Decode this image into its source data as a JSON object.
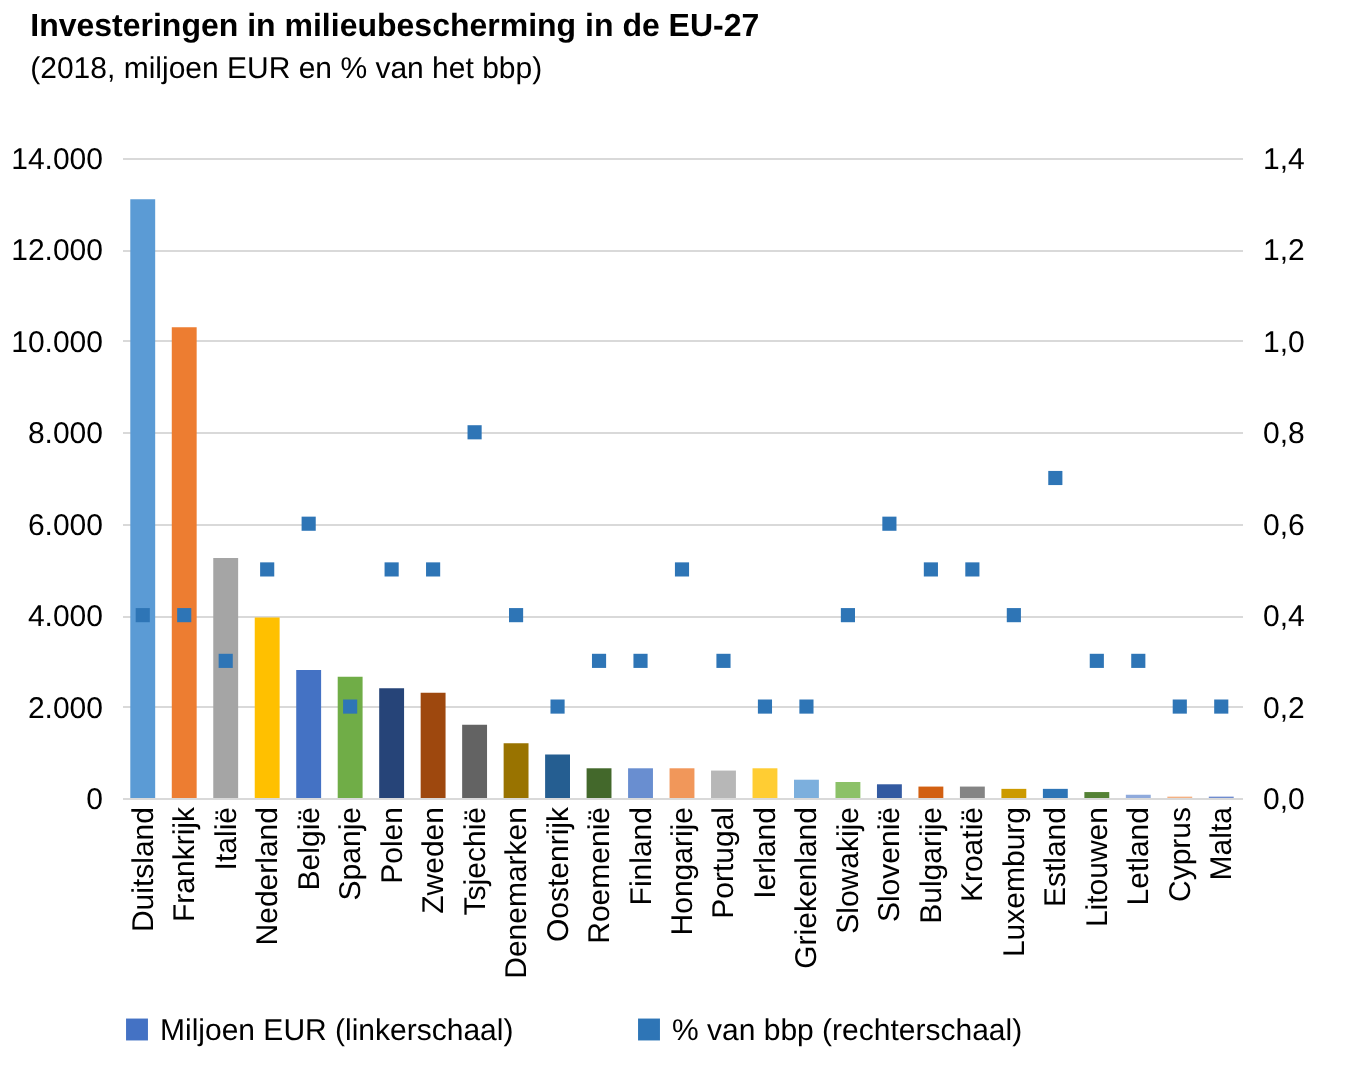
{
  "chart_data": {
    "type": "bar",
    "title": "Investeringen in milieubescherming in de EU-27",
    "subtitle": "(2018, miljoen EUR en % van het bbp)",
    "categories": [
      "Duitsland",
      "Frankrijk",
      "Italië",
      "Nederland",
      "België",
      "Spanje",
      "Polen",
      "Zweden",
      "Tsjechië",
      "Denemarken",
      "Oostenrijk",
      "Roemenië",
      "Finland",
      "Hongarije",
      "Portugal",
      "Ierland",
      "Griekenland",
      "Slowakije",
      "Slovenië",
      "Bulgarije",
      "Kroatië",
      "Luxemburg",
      "Estland",
      "Litouwen",
      "Letland",
      "Cyprus",
      "Malta"
    ],
    "series": [
      {
        "name": "Miljoen EUR (linkerschaal)",
        "color": "#4472c4",
        "colors": [
          "#5b9bd5",
          "#ed7d31",
          "#a5a5a5",
          "#ffc000",
          "#4472c4",
          "#70ad47",
          "#264478",
          "#9e480e",
          "#636363",
          "#997300",
          "#255e91",
          "#43682b",
          "#698ed0",
          "#f1975a",
          "#b7b7b7",
          "#ffcd33",
          "#7cafdd",
          "#8cc168",
          "#335aa1",
          "#d26012",
          "#848484",
          "#cc9a00",
          "#2e75b6",
          "#548235",
          "#8faadc",
          "#f4b183",
          "#6f8ccf"
        ],
        "values": [
          13100,
          10300,
          5250,
          3950,
          2800,
          2650,
          2400,
          2300,
          1600,
          1200,
          950,
          650,
          650,
          650,
          600,
          650,
          400,
          350,
          300,
          250,
          250,
          200,
          200,
          130,
          70,
          30,
          30
        ]
      },
      {
        "name": "% van bbp (rechterschaal)",
        "type": "scatter",
        "axis": "y2",
        "color": "#2e75b6",
        "marker": "square",
        "values": [
          0.4,
          0.4,
          0.3,
          0.5,
          0.6,
          0.2,
          0.5,
          0.5,
          0.8,
          0.4,
          0.2,
          0.3,
          0.3,
          0.5,
          0.3,
          0.2,
          0.2,
          0.4,
          0.6,
          0.5,
          0.5,
          0.4,
          0.7,
          0.3,
          0.3,
          0.2,
          0.2
        ]
      }
    ],
    "ylim": [
      0,
      14000
    ],
    "yticks": [
      {
        "value": 0,
        "label": "0"
      },
      {
        "value": 2000,
        "label": "2.000"
      },
      {
        "value": 4000,
        "label": "4.000"
      },
      {
        "value": 6000,
        "label": "6.000"
      },
      {
        "value": 8000,
        "label": "8.000"
      },
      {
        "value": 10000,
        "label": "10.000"
      },
      {
        "value": 12000,
        "label": "12.000"
      },
      {
        "value": 14000,
        "label": "14.000"
      }
    ],
    "y2lim": [
      0,
      1.4
    ],
    "y2ticks": [
      {
        "value": 0,
        "label": "0,0"
      },
      {
        "value": 0.2,
        "label": "0,2"
      },
      {
        "value": 0.4,
        "label": "0,4"
      },
      {
        "value": 0.6,
        "label": "0,6"
      },
      {
        "value": 0.8,
        "label": "0,8"
      },
      {
        "value": 1,
        "label": "1,0"
      },
      {
        "value": 1.2,
        "label": "1,2"
      },
      {
        "value": 1.4,
        "label": "1,4"
      }
    ],
    "grid": "y",
    "legend": "bottom"
  }
}
